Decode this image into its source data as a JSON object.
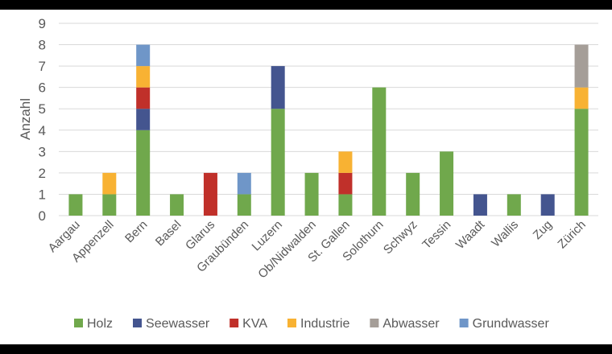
{
  "chart_data": {
    "type": "bar",
    "stacked": true,
    "title": "",
    "xlabel": "",
    "ylabel": "Anzahl",
    "ylim": [
      0,
      9
    ],
    "yticks": [
      0,
      1,
      2,
      3,
      4,
      5,
      6,
      7,
      8,
      9
    ],
    "grid": true,
    "legend_position": "bottom",
    "categories": [
      "Aargau",
      "Appenzell",
      "Bern",
      "Basel",
      "Glarus",
      "Graubünden",
      "Luzern",
      "Ob/Nidwalden",
      "St. Gallen",
      "Solothurn",
      "Schwyz",
      "Tessin",
      "Waadt",
      "Wallis",
      "Zug",
      "Zürich"
    ],
    "series": [
      {
        "name": "Holz",
        "color": "#70A84C",
        "values": [
          1,
          1,
          4,
          1,
          0,
          1,
          5,
          2,
          1,
          6,
          2,
          3,
          0,
          1,
          0,
          5
        ]
      },
      {
        "name": "Seewasser",
        "color": "#44558F",
        "values": [
          0,
          0,
          1,
          0,
          0,
          0,
          2,
          0,
          0,
          0,
          0,
          0,
          1,
          0,
          1,
          0
        ]
      },
      {
        "name": "KVA",
        "color": "#C0302A",
        "values": [
          0,
          0,
          1,
          0,
          2,
          0,
          0,
          0,
          1,
          0,
          0,
          0,
          0,
          0,
          0,
          0
        ]
      },
      {
        "name": "Industrie",
        "color": "#F8B233",
        "values": [
          0,
          1,
          1,
          0,
          0,
          0,
          0,
          0,
          1,
          0,
          0,
          0,
          0,
          0,
          0,
          1
        ]
      },
      {
        "name": "Abwasser",
        "color": "#A59E98",
        "values": [
          0,
          0,
          0,
          0,
          0,
          0,
          0,
          0,
          0,
          0,
          0,
          0,
          0,
          0,
          0,
          2
        ]
      },
      {
        "name": "Grundwasser",
        "color": "#6F96C8",
        "values": [
          0,
          0,
          1,
          0,
          0,
          1,
          0,
          0,
          0,
          0,
          0,
          0,
          0,
          0,
          0,
          0
        ]
      }
    ]
  }
}
